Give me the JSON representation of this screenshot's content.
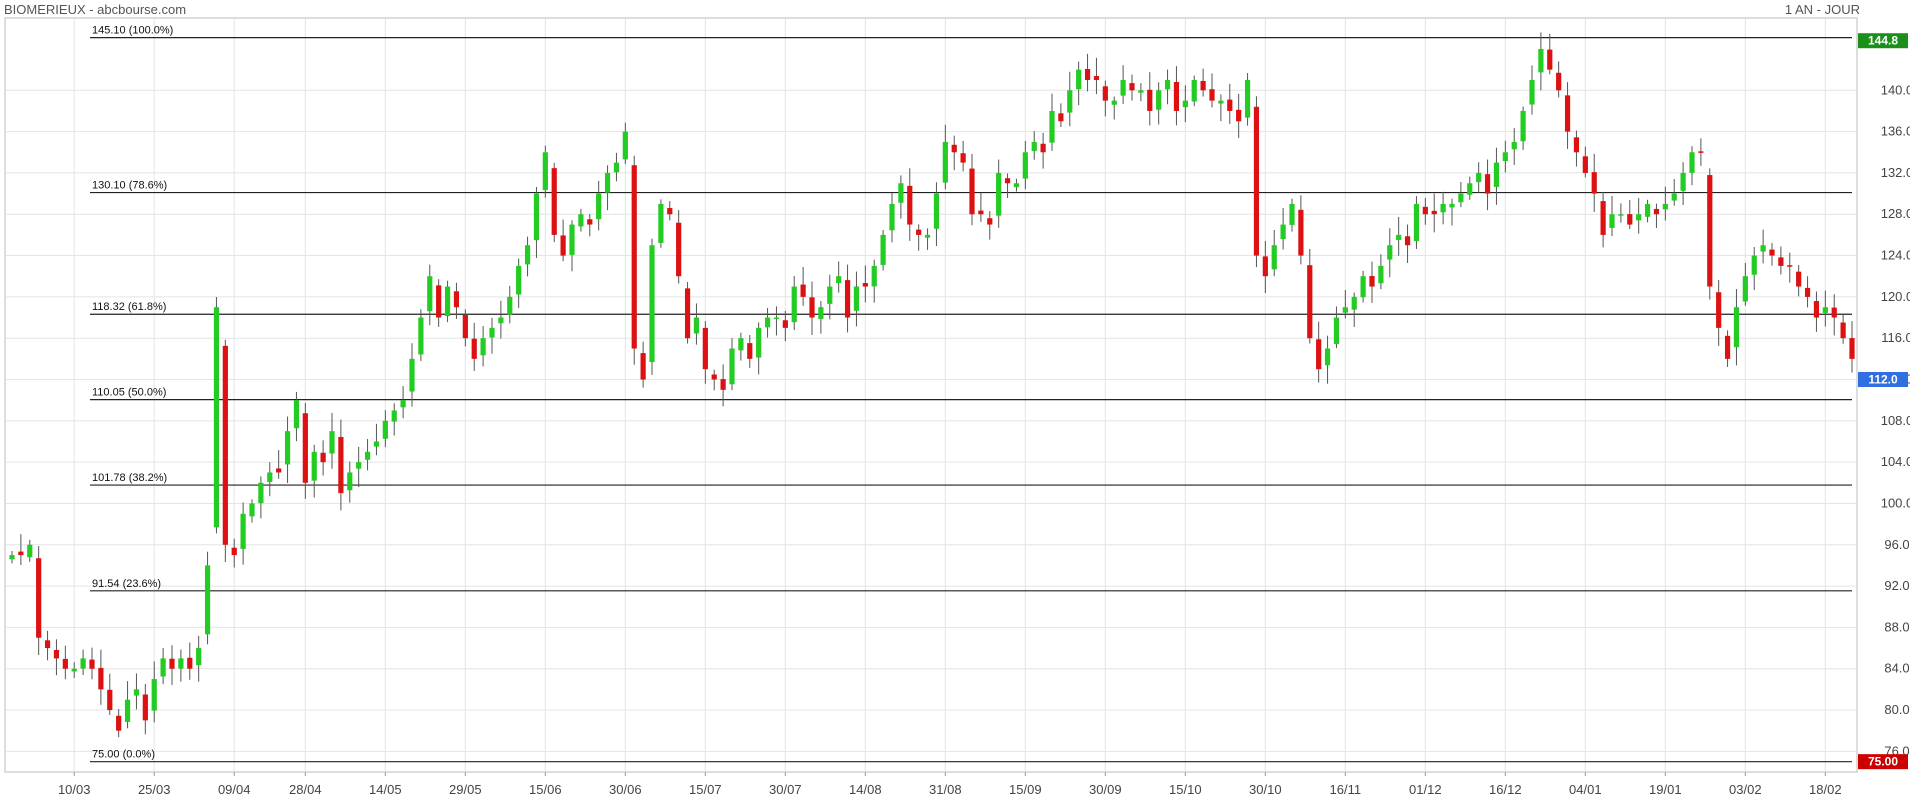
{
  "header": {
    "title": "BIOMERIEUX - abcbourse.com",
    "period": "1 AN - JOUR"
  },
  "chart_data": {
    "type": "candlestick",
    "ylim": [
      74,
      147
    ],
    "yticks": [
      76,
      80,
      84,
      88,
      92,
      96,
      100,
      104,
      108,
      112,
      116,
      120,
      124,
      128,
      132,
      136,
      140
    ],
    "x_ticks": [
      {
        "label": "10/03",
        "i": 7
      },
      {
        "label": "25/03",
        "i": 16
      },
      {
        "label": "09/04",
        "i": 25
      },
      {
        "label": "28/04",
        "i": 33
      },
      {
        "label": "14/05",
        "i": 42
      },
      {
        "label": "29/05",
        "i": 51
      },
      {
        "label": "15/06",
        "i": 60
      },
      {
        "label": "30/06",
        "i": 69
      },
      {
        "label": "15/07",
        "i": 78
      },
      {
        "label": "30/07",
        "i": 87
      },
      {
        "label": "14/08",
        "i": 96
      },
      {
        "label": "31/08",
        "i": 105
      },
      {
        "label": "15/09",
        "i": 114
      },
      {
        "label": "30/09",
        "i": 123
      },
      {
        "label": "15/10",
        "i": 132
      },
      {
        "label": "30/10",
        "i": 141
      },
      {
        "label": "16/11",
        "i": 150
      },
      {
        "label": "01/12",
        "i": 159
      },
      {
        "label": "16/12",
        "i": 168
      },
      {
        "label": "04/01",
        "i": 177
      },
      {
        "label": "19/01",
        "i": 186
      },
      {
        "label": "03/02",
        "i": 195
      },
      {
        "label": "18/02",
        "i": 204
      }
    ],
    "fib_levels": [
      {
        "value": 145.1,
        "label": "145.10  (100.0%)"
      },
      {
        "value": 130.1,
        "label": "130.10  (78.6%)"
      },
      {
        "value": 118.32,
        "label": "118.32  (61.8%)"
      },
      {
        "value": 110.05,
        "label": "110.05  (50.0%)"
      },
      {
        "value": 101.78,
        "label": "101.78  (38.2%)"
      },
      {
        "value": 91.54,
        "label": "91.54  (23.6%)"
      },
      {
        "value": 75.0,
        "label": "75.00  (0.0%)"
      }
    ],
    "badges": [
      {
        "value": 144.8,
        "label": "144.8",
        "color": "#1a8f1a"
      },
      {
        "value": 112.0,
        "label": "112.0",
        "color": "#2f6fe0"
      },
      {
        "value": 75.0,
        "label": "75.00",
        "color": "#cc0000"
      }
    ],
    "up_color": "#22cc22",
    "down_color": "#dd1111",
    "closes": [
      95,
      95,
      96,
      87,
      86,
      85,
      84,
      84,
      85,
      84,
      82,
      80,
      78,
      81,
      82,
      79,
      83,
      85,
      84,
      85,
      84,
      86,
      94,
      119,
      96,
      95,
      99,
      100,
      102,
      103,
      103,
      107,
      110,
      102,
      105,
      104,
      107,
      101,
      103,
      104,
      105,
      106,
      108,
      109,
      110,
      114,
      118,
      122,
      118,
      121,
      119,
      116,
      114,
      116,
      117,
      118,
      120,
      123,
      125,
      130,
      134,
      126,
      124,
      127,
      128,
      127,
      130,
      132,
      133,
      136,
      115,
      112,
      125,
      129,
      128,
      122,
      116,
      118,
      113,
      112,
      111,
      115,
      116,
      114,
      117,
      118,
      118,
      117,
      121,
      120,
      118,
      119,
      121,
      122,
      118,
      121,
      121,
      123,
      126,
      129,
      131,
      127,
      126,
      126,
      130,
      135,
      134,
      133,
      128,
      128,
      127,
      132,
      131,
      131,
      134,
      135,
      134,
      138,
      137,
      140,
      142,
      141,
      141,
      139,
      139,
      141,
      140,
      140,
      138,
      140,
      141,
      138,
      139,
      141,
      140,
      139,
      139,
      138,
      137,
      141,
      124,
      122,
      125,
      127,
      129,
      124,
      116,
      113,
      115,
      118,
      119,
      120,
      122,
      121,
      123,
      125,
      126,
      125,
      129,
      128,
      128,
      129,
      129,
      130,
      131,
      132,
      130,
      133,
      134,
      135,
      138,
      141,
      144,
      142,
      140,
      136,
      134,
      132,
      130,
      126,
      128,
      128,
      127,
      128,
      129,
      128,
      129,
      130,
      132,
      134,
      134,
      121,
      117,
      114,
      119,
      122,
      124,
      125,
      124,
      123,
      123,
      121,
      120,
      118,
      119,
      118,
      116,
      114
    ]
  }
}
